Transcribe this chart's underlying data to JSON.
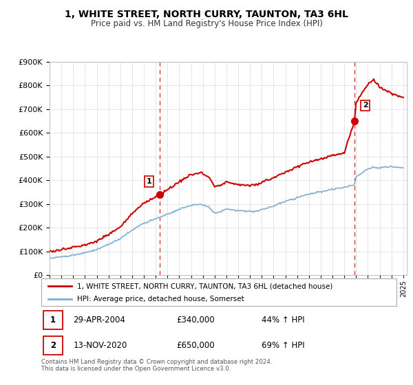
{
  "title": "1, WHITE STREET, NORTH CURRY, TAUNTON, TA3 6HL",
  "subtitle": "Price paid vs. HM Land Registry's House Price Index (HPI)",
  "ylim": [
    0,
    900000
  ],
  "yticks": [
    0,
    100000,
    200000,
    300000,
    400000,
    500000,
    600000,
    700000,
    800000,
    900000
  ],
  "x_start_year": 1995,
  "x_end_year": 2025,
  "sale1_date": 2004.32,
  "sale1_price": 340000,
  "sale1_label": "1",
  "sale2_date": 2020.87,
  "sale2_price": 650000,
  "sale2_label": "2",
  "legend_line1": "1, WHITE STREET, NORTH CURRY, TAUNTON, TA3 6HL (detached house)",
  "legend_line2": "HPI: Average price, detached house, Somerset",
  "table_row1": [
    "1",
    "29-APR-2004",
    "£340,000",
    "44% ↑ HPI"
  ],
  "table_row2": [
    "2",
    "13-NOV-2020",
    "£650,000",
    "69% ↑ HPI"
  ],
  "footer": "Contains HM Land Registry data © Crown copyright and database right 2024.\nThis data is licensed under the Open Government Licence v3.0.",
  "line_color_red": "#cc0000",
  "line_color_blue": "#7eadd4",
  "sale_marker_color": "#cc0000",
  "dashed_line_color": "#cc0000",
  "background_color": "#ffffff",
  "grid_color": "#e0e0e0",
  "hpi_waypoints": [
    [
      1995,
      72000
    ],
    [
      1996,
      78000
    ],
    [
      1997,
      86000
    ],
    [
      1998,
      95000
    ],
    [
      1999,
      108000
    ],
    [
      2000,
      130000
    ],
    [
      2001,
      155000
    ],
    [
      2002,
      190000
    ],
    [
      2003,
      220000
    ],
    [
      2004,
      238000
    ],
    [
      2005,
      258000
    ],
    [
      2006,
      278000
    ],
    [
      2007,
      295000
    ],
    [
      2007.8,
      300000
    ],
    [
      2008.5,
      288000
    ],
    [
      2009,
      262000
    ],
    [
      2009.5,
      268000
    ],
    [
      2010,
      280000
    ],
    [
      2010.5,
      275000
    ],
    [
      2011,
      272000
    ],
    [
      2012,
      268000
    ],
    [
      2012.5,
      270000
    ],
    [
      2013,
      278000
    ],
    [
      2014,
      292000
    ],
    [
      2015,
      312000
    ],
    [
      2016,
      328000
    ],
    [
      2017,
      342000
    ],
    [
      2018,
      352000
    ],
    [
      2019,
      362000
    ],
    [
      2020,
      370000
    ],
    [
      2020.87,
      382000
    ],
    [
      2021,
      415000
    ],
    [
      2022,
      448000
    ],
    [
      2022.5,
      455000
    ],
    [
      2023,
      452000
    ],
    [
      2024,
      458000
    ],
    [
      2025,
      452000
    ]
  ],
  "prop_waypoints": [
    [
      1995,
      100000
    ],
    [
      1996,
      108000
    ],
    [
      1997,
      118000
    ],
    [
      1998,
      128000
    ],
    [
      1999,
      143000
    ],
    [
      2000,
      172000
    ],
    [
      2001,
      205000
    ],
    [
      2002,
      260000
    ],
    [
      2003,
      305000
    ],
    [
      2004.32,
      340000
    ],
    [
      2005,
      360000
    ],
    [
      2006,
      395000
    ],
    [
      2007,
      425000
    ],
    [
      2007.8,
      432000
    ],
    [
      2008.5,
      415000
    ],
    [
      2009,
      375000
    ],
    [
      2009.5,
      380000
    ],
    [
      2010,
      395000
    ],
    [
      2010.5,
      388000
    ],
    [
      2011,
      382000
    ],
    [
      2012,
      378000
    ],
    [
      2012.5,
      382000
    ],
    [
      2013,
      392000
    ],
    [
      2014,
      410000
    ],
    [
      2015,
      435000
    ],
    [
      2016,
      458000
    ],
    [
      2017,
      475000
    ],
    [
      2018,
      490000
    ],
    [
      2019,
      505000
    ],
    [
      2020,
      515000
    ],
    [
      2020.87,
      650000
    ],
    [
      2021,
      730000
    ],
    [
      2022,
      805000
    ],
    [
      2022.5,
      825000
    ],
    [
      2023,
      790000
    ],
    [
      2024,
      765000
    ],
    [
      2025,
      750000
    ]
  ]
}
